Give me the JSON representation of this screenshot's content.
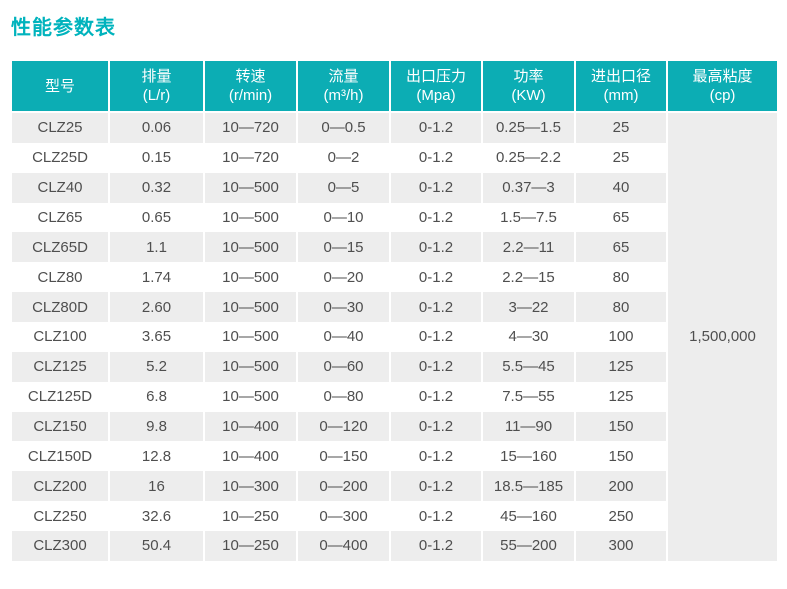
{
  "page": {
    "title": "性能参数表"
  },
  "colors": {
    "accent_teal": "#0cadb4",
    "title_teal": "#00b3bd",
    "row_stripe": "#ededed",
    "header_text": "#ffffff",
    "body_text": "#4f4f4f"
  },
  "table": {
    "columns": [
      {
        "name": "型号",
        "unit": ""
      },
      {
        "name": "排量",
        "unit": "(L/r)"
      },
      {
        "name": "转速",
        "unit": "(r/min)"
      },
      {
        "name": "流量",
        "unit": "(m³/h)"
      },
      {
        "name": "出口压力",
        "unit": "(Mpa)"
      },
      {
        "name": "功率",
        "unit": "(KW)"
      },
      {
        "name": "进出口径",
        "unit": "(mm)"
      },
      {
        "name": "最高粘度",
        "unit": "(cp)"
      }
    ],
    "rows": [
      [
        "CLZ25",
        "0.06",
        "10—720",
        "0—0.5",
        "0-1.2",
        "0.25—1.5",
        "25"
      ],
      [
        "CLZ25D",
        "0.15",
        "10—720",
        "0—2",
        "0-1.2",
        "0.25—2.2",
        "25"
      ],
      [
        "CLZ40",
        "0.32",
        "10—500",
        "0—5",
        "0-1.2",
        "0.37—3",
        "40"
      ],
      [
        "CLZ65",
        "0.65",
        "10—500",
        "0—10",
        "0-1.2",
        "1.5—7.5",
        "65"
      ],
      [
        "CLZ65D",
        "1.1",
        "10—500",
        "0—15",
        "0-1.2",
        "2.2—11",
        "65"
      ],
      [
        "CLZ80",
        "1.74",
        "10—500",
        "0—20",
        "0-1.2",
        "2.2—15",
        "80"
      ],
      [
        "CLZ80D",
        "2.60",
        "10—500",
        "0—30",
        "0-1.2",
        "3—22",
        "80"
      ],
      [
        "CLZ100",
        "3.65",
        "10—500",
        "0—40",
        "0-1.2",
        "4—30",
        "100"
      ],
      [
        "CLZ125",
        "5.2",
        "10—500",
        "0—60",
        "0-1.2",
        "5.5—45",
        "125"
      ],
      [
        "CLZ125D",
        "6.8",
        "10—500",
        "0—80",
        "0-1.2",
        "7.5—55",
        "125"
      ],
      [
        "CLZ150",
        "9.8",
        "10—400",
        "0—120",
        "0-1.2",
        "11—90",
        "150"
      ],
      [
        "CLZ150D",
        "12.8",
        "10—400",
        "0—150",
        "0-1.2",
        "15—160",
        "150"
      ],
      [
        "CLZ200",
        "16",
        "10—300",
        "0—200",
        "0-1.2",
        "18.5—185",
        "200"
      ],
      [
        "CLZ250",
        "32.6",
        "10—250",
        "0—300",
        "0-1.2",
        "45—160",
        "250"
      ],
      [
        "CLZ300",
        "50.4",
        "10—250",
        "0—400",
        "0-1.2",
        "55—200",
        "300"
      ]
    ],
    "max_viscosity": "1,500,000"
  }
}
